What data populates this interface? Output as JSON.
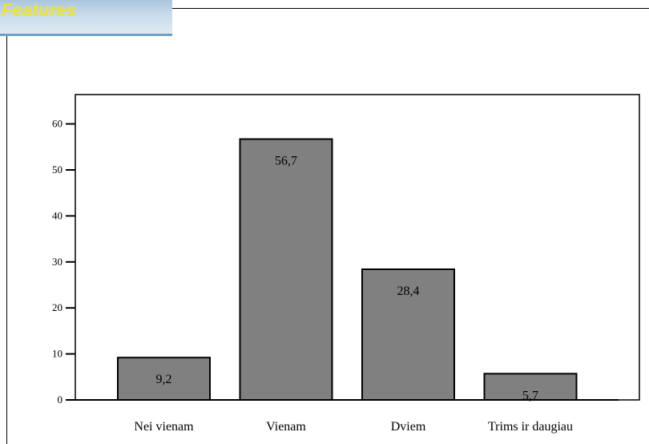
{
  "header": {
    "title": "Features"
  },
  "colors": {
    "bar_fill": "#808080",
    "bar_stroke": "#000000",
    "title_color": "#f2e422"
  },
  "chart_data": {
    "type": "bar",
    "categories": [
      "Nei vienam",
      "Vienam",
      "Dviem",
      "Trims ir daugiau"
    ],
    "values": [
      9.2,
      56.7,
      28.4,
      5.7
    ],
    "value_labels": [
      "9,2",
      "56,7",
      "28,4",
      "5,7"
    ],
    "yticks": [
      "0",
      "10",
      "20",
      "30",
      "40",
      "50",
      "60"
    ],
    "ylim": [
      0,
      66.5
    ],
    "grid": false,
    "legend": "none",
    "title": "",
    "xlabel": "",
    "ylabel": ""
  }
}
